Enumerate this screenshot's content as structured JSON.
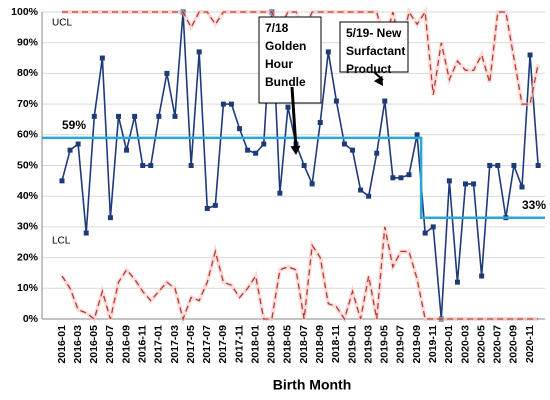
{
  "chart_data": {
    "type": "line",
    "x_label": "Birth Month",
    "categories": [
      "2016-01",
      null,
      "2016-03",
      null,
      "2016-05",
      null,
      "2016-07",
      null,
      "2016-09",
      null,
      "2016-11",
      null,
      "2017-01",
      null,
      "2017-03",
      null,
      "2017-05",
      null,
      "2017-07",
      null,
      "2017-09",
      null,
      "2017-11",
      null,
      "2018-01",
      null,
      "2018-03",
      null,
      "2018-05",
      null,
      "2018-07",
      null,
      "2018-09",
      null,
      "2018-11",
      null,
      "2019-01",
      null,
      "2019-03",
      null,
      "2019-05",
      null,
      "2019-07",
      null,
      "2019-09",
      null,
      "2019-11",
      null,
      "2020-01",
      null,
      "2020-03",
      null,
      "2020-05",
      null,
      "2020-07",
      null,
      "2020-09",
      null,
      "2020-11",
      null
    ],
    "series": [
      {
        "color": "#1f3a7a",
        "style": "markers",
        "values": [
          45,
          55,
          57,
          28,
          66,
          85,
          33,
          66,
          55,
          66,
          50,
          50,
          66,
          80,
          66,
          100,
          50,
          87,
          36,
          37,
          70,
          70,
          62,
          55,
          54,
          57,
          100,
          41,
          69,
          57,
          50,
          44,
          64,
          87,
          71,
          57,
          55,
          42,
          40,
          54,
          71,
          46,
          46,
          47,
          60,
          28,
          30,
          0,
          45,
          12,
          44,
          44,
          14,
          50,
          50,
          33,
          50,
          43,
          86,
          50
        ]
      },
      {
        "color": "#2aa7d8",
        "style": "center",
        "values": [
          59,
          59,
          59,
          59,
          59,
          59,
          59,
          59,
          59,
          59,
          59,
          59,
          59,
          59,
          59,
          59,
          59,
          59,
          59,
          59,
          59,
          59,
          59,
          59,
          59,
          59,
          59,
          59,
          59,
          59,
          59,
          59,
          59,
          59,
          59,
          59,
          59,
          59,
          59,
          59,
          59,
          59,
          59,
          59,
          59,
          33,
          33,
          33,
          33,
          33,
          33,
          33,
          33,
          33,
          33,
          33,
          33,
          33,
          33,
          33
        ],
        "value_labels": [
          "59%",
          null,
          null,
          null,
          null,
          null,
          null,
          null,
          null,
          null,
          null,
          null,
          null,
          null,
          null,
          null,
          null,
          null,
          null,
          null,
          null,
          null,
          null,
          null,
          null,
          null,
          null,
          null,
          null,
          null,
          null,
          null,
          null,
          null,
          null,
          null,
          null,
          null,
          null,
          null,
          null,
          null,
          null,
          null,
          null,
          null,
          null,
          null,
          null,
          null,
          null,
          null,
          null,
          null,
          null,
          null,
          null,
          "33%",
          null,
          null
        ]
      },
      {
        "name": "UCL",
        "color": "#c0392b",
        "style": "dashed",
        "values": [
          100,
          100,
          100,
          100,
          100,
          100,
          100,
          100,
          100,
          100,
          100,
          100,
          100,
          100,
          100,
          100,
          95,
          100,
          100,
          96,
          100,
          100,
          100,
          100,
          100,
          100,
          100,
          95,
          100,
          100,
          94,
          100,
          100,
          100,
          100,
          100,
          100,
          100,
          100,
          100,
          90,
          100,
          88,
          100,
          96,
          100,
          73,
          90,
          78,
          84,
          81,
          81,
          86,
          77,
          100,
          100,
          85,
          70,
          70,
          83
        ]
      },
      {
        "name": "LCL",
        "color": "#c0392b",
        "style": "dashed",
        "values": [
          14,
          10,
          3,
          2,
          0,
          9,
          0,
          12,
          16,
          13,
          9,
          6,
          9,
          12,
          10,
          0,
          7,
          6,
          12,
          22,
          12,
          11,
          7,
          10,
          14,
          0,
          0,
          16,
          17,
          16,
          0,
          24,
          20,
          5,
          4,
          0,
          9,
          0,
          14,
          0,
          30,
          17,
          22,
          22,
          13,
          0,
          0,
          0,
          0,
          0,
          0,
          0,
          0,
          0,
          0,
          0,
          0,
          0,
          0,
          0
        ]
      }
    ],
    "annotations": [
      [
        "7/18",
        "Golden",
        "Hour",
        "Bundle"
      ],
      [
        "5/19- New",
        "Surfactant",
        "Product"
      ]
    ],
    "ylim": [
      0,
      100
    ],
    "yticks": [
      {
        "value": 0,
        "label": "0%"
      },
      {
        "value": 10,
        "label": "10%"
      },
      {
        "value": 20,
        "label": "20%"
      },
      {
        "value": 30,
        "label": "30%"
      },
      {
        "value": 40,
        "label": "40%"
      },
      {
        "value": 50,
        "label": "50%"
      },
      {
        "value": 60,
        "label": "60%"
      },
      {
        "value": 70,
        "label": "70%"
      },
      {
        "value": 80,
        "label": "80%"
      },
      {
        "value": 90,
        "label": "90%"
      },
      {
        "value": 100,
        "label": "100%"
      }
    ],
    "grid": true
  }
}
